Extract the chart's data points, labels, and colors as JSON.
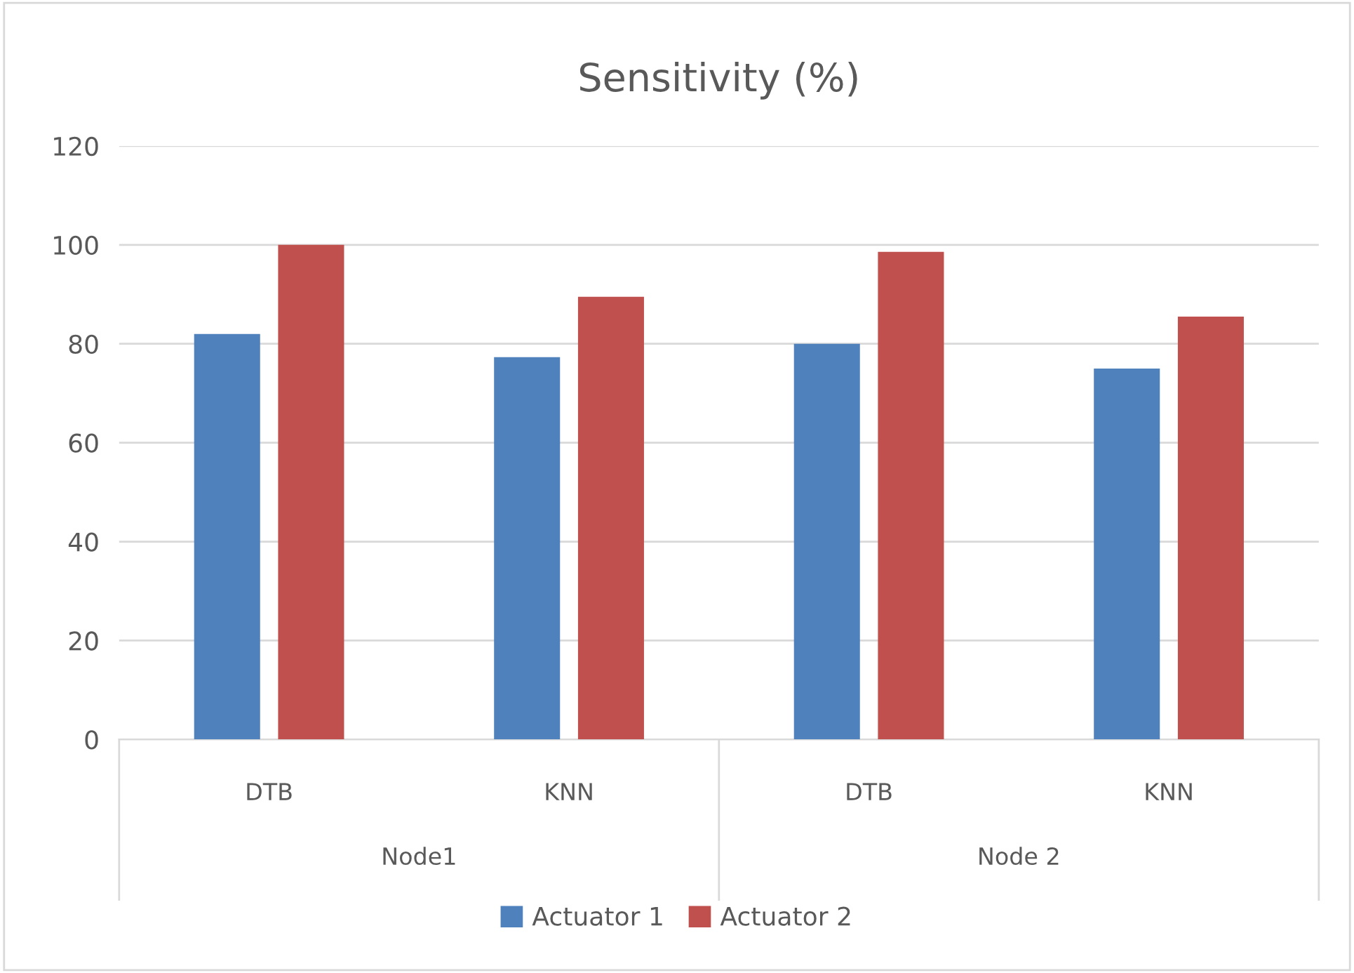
{
  "chart_data": {
    "type": "bar",
    "title": "Sensitivity (%)",
    "categories": [
      "DTB",
      "KNN",
      "DTB",
      "KNN"
    ],
    "series": [
      {
        "name": "Actuator 1",
        "color": "#4f81bd",
        "values": [
          82,
          77.3,
          80,
          75
        ]
      },
      {
        "name": "Actuator 2",
        "color": "#c0504d",
        "values": [
          100,
          89.5,
          98.6,
          85.5
        ]
      }
    ],
    "annotations": [
      "Node1",
      "Node 2"
    ],
    "ylim": [
      0,
      120
    ],
    "yticks": [
      0,
      20,
      40,
      60,
      80,
      100,
      120
    ],
    "grid": "y",
    "legend": "bottom"
  }
}
